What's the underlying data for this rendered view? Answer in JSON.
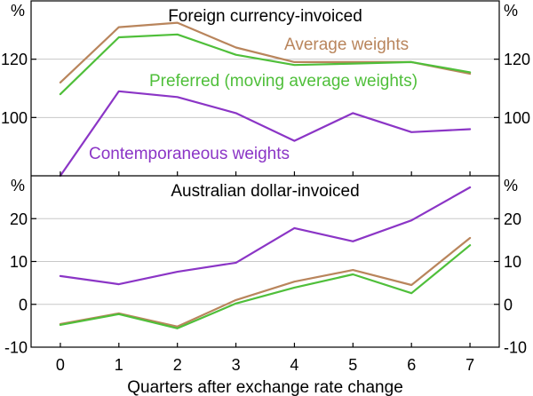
{
  "chart_data": [
    {
      "type": "line",
      "title": "Foreign currency-invoiced",
      "x": [
        0,
        1,
        2,
        3,
        4,
        5,
        6,
        7
      ],
      "xlim": [
        -0.5,
        7.5
      ],
      "ylim": [
        80,
        140
      ],
      "yticks": [
        120,
        100
      ],
      "yunit": "%",
      "grid": true,
      "series": [
        {
          "name": "Average weights",
          "color": "#b9855c",
          "values": [
            112,
            131,
            132.5,
            124,
            119,
            119,
            119,
            115
          ]
        },
        {
          "name": "Preferred (moving average weights)",
          "color": "#4fbf3a",
          "values": [
            108,
            127.5,
            128.5,
            121.5,
            118,
            118.5,
            119,
            115.5
          ]
        },
        {
          "name": "Contemporaneous weights",
          "color": "#8b35c6",
          "values": [
            80,
            109,
            107,
            101.5,
            92,
            101.5,
            95,
            96
          ]
        }
      ]
    },
    {
      "type": "line",
      "title": "Australian dollar-invoiced",
      "x": [
        0,
        1,
        2,
        3,
        4,
        5,
        6,
        7
      ],
      "xlim": [
        -0.5,
        7.5
      ],
      "ylim": [
        -10,
        30
      ],
      "yticks": [
        20,
        10,
        0,
        -10
      ],
      "yunit": "%",
      "grid": true,
      "xticklabels": [
        "0",
        "1",
        "2",
        "3",
        "4",
        "5",
        "6",
        "7"
      ],
      "xlabel": "Quarters after exchange rate change",
      "series": [
        {
          "color": "#b9855c",
          "values": [
            -4.6,
            -2.1,
            -5.2,
            1.0,
            5.3,
            8.0,
            4.5,
            15.5
          ]
        },
        {
          "color": "#4fbf3a",
          "values": [
            -4.8,
            -2.3,
            -5.6,
            0.2,
            3.9,
            7.0,
            2.6,
            13.8
          ]
        },
        {
          "color": "#8b35c6",
          "values": [
            6.6,
            4.7,
            7.6,
            9.7,
            17.8,
            14.7,
            19.6,
            27.3
          ]
        }
      ]
    }
  ]
}
